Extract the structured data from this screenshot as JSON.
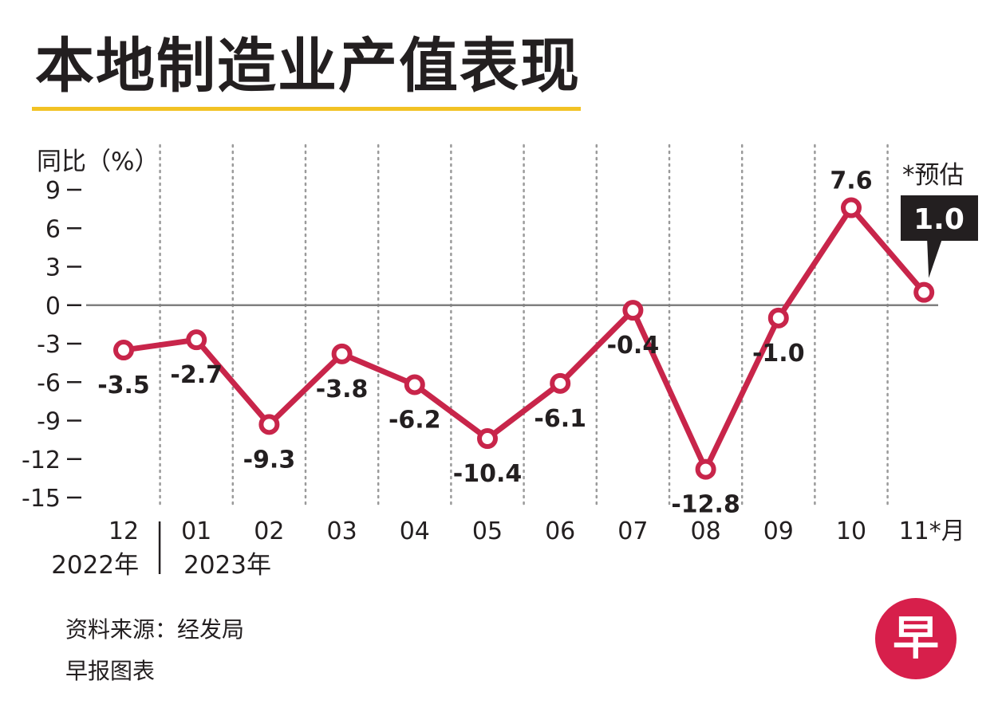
{
  "title": "本地制造业产值表现",
  "source": "资料来源：经发局",
  "credit": "早报图表",
  "logo": {
    "char": "早",
    "icon": "lianhe-zaobao-logo-icon",
    "color": "#d71f4b"
  },
  "colors": {
    "line": "#c8254a",
    "title_underline": "#f2c224",
    "callout_bg": "#231f20",
    "zero_line": "#808080"
  },
  "chart_data": {
    "type": "line",
    "ylabel": "同比（%）",
    "categories": [
      "12",
      "01",
      "02",
      "03",
      "04",
      "05",
      "06",
      "07",
      "08",
      "09",
      "10",
      "11*月"
    ],
    "values": [
      -3.5,
      -2.7,
      -9.3,
      -3.8,
      -6.2,
      -10.4,
      -6.1,
      -0.4,
      -12.8,
      -1.0,
      7.6,
      1.0
    ],
    "labels": [
      "-3.5",
      "-2.7",
      "-9.3",
      "-3.8",
      "-6.2",
      "-10.4",
      "-6.1",
      "-0.4",
      "-12.8",
      "-1.0",
      "7.6",
      "1.0"
    ],
    "yticks": [
      9,
      6,
      3,
      0,
      -3,
      -6,
      -9,
      -12,
      -15
    ],
    "ytick_labels": [
      "9",
      "6",
      "3",
      "0",
      "-3",
      "-6",
      "-9",
      "-12",
      "-15"
    ],
    "ylim": [
      -15,
      9
    ],
    "year_labels": [
      "2022年",
      "2023年"
    ],
    "estimate_note": "*预估",
    "grid": "vertical dotted"
  }
}
